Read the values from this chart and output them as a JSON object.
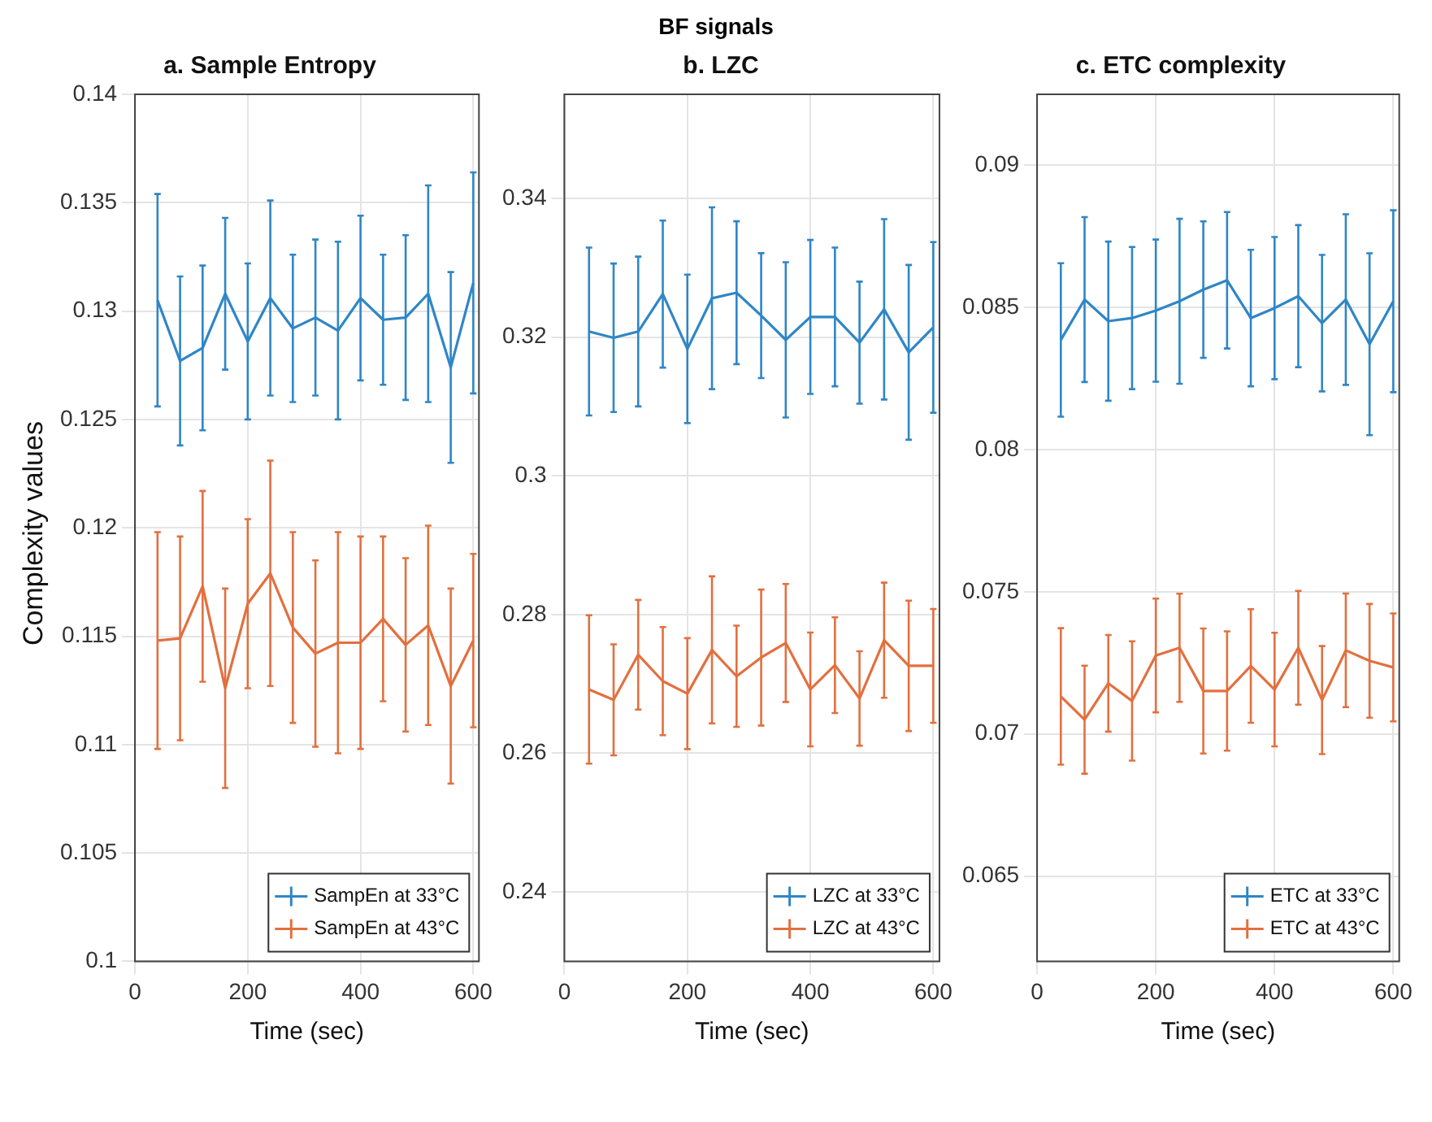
{
  "chart_data": [
    {
      "type": "line",
      "title": "a. Sample Entropy",
      "xlabel": "Time (sec)",
      "ylabel": "Complexity values",
      "annotations": [
        "BF signals"
      ],
      "x": [
        40,
        80,
        120,
        160,
        200,
        240,
        280,
        320,
        360,
        400,
        440,
        480,
        520,
        560,
        600
      ],
      "xlim": [
        0,
        610
      ],
      "xticks": [
        0,
        200,
        400,
        600
      ],
      "ylim": [
        0.1,
        0.14
      ],
      "yticks": [
        0.1,
        0.105,
        0.11,
        0.115,
        0.12,
        0.125,
        0.13,
        0.135,
        0.14
      ],
      "grid": true,
      "legend": "bottom right",
      "series": [
        {
          "name": "SampEn at 33°C",
          "color": "#2f86c6",
          "values": [
            0.1305,
            0.1277,
            0.1283,
            0.1308,
            0.1286,
            0.1306,
            0.1292,
            0.1297,
            0.1291,
            0.1306,
            0.1296,
            0.1297,
            0.1308,
            0.1274,
            0.1313
          ],
          "errors": [
            0.0049,
            0.0039,
            0.0038,
            0.0035,
            0.0036,
            0.0045,
            0.0034,
            0.0036,
            0.0041,
            0.0038,
            0.003,
            0.0038,
            0.005,
            0.0044,
            0.0051
          ]
        },
        {
          "name": "SampEn at 43°C",
          "color": "#e2703f",
          "values": [
            0.1148,
            0.1149,
            0.1173,
            0.1126,
            0.1165,
            0.1179,
            0.1154,
            0.1142,
            0.1147,
            0.1147,
            0.1158,
            0.1146,
            0.1155,
            0.1127,
            0.1148
          ],
          "errors": [
            0.005,
            0.0047,
            0.0044,
            0.0046,
            0.0039,
            0.0052,
            0.0044,
            0.0043,
            0.0051,
            0.0049,
            0.0038,
            0.004,
            0.0046,
            0.0045,
            0.004
          ]
        }
      ]
    },
    {
      "type": "line",
      "title": "b. LZC",
      "xlabel": "Time (sec)",
      "x": [
        40,
        80,
        120,
        160,
        200,
        240,
        280,
        320,
        360,
        400,
        440,
        480,
        520,
        560,
        600
      ],
      "xlim": [
        0,
        610
      ],
      "xticks": [
        0,
        200,
        400,
        600
      ],
      "ylim": [
        0.23,
        0.355
      ],
      "yticks": [
        0.24,
        0.26,
        0.28,
        0.3,
        0.32,
        0.34
      ],
      "grid": true,
      "legend": "bottom right",
      "series": [
        {
          "name": "LZC at 33°C",
          "color": "#2f86c6",
          "values": [
            0.3208,
            0.3199,
            0.3208,
            0.3262,
            0.3183,
            0.3256,
            0.3264,
            0.3231,
            0.3196,
            0.3229,
            0.3229,
            0.3192,
            0.324,
            0.3178,
            0.3214
          ],
          "errors": [
            0.0121,
            0.0107,
            0.0108,
            0.0106,
            0.0107,
            0.0131,
            0.0103,
            0.009,
            0.0112,
            0.0111,
            0.01,
            0.0088,
            0.013,
            0.0126,
            0.0123
          ]
        },
        {
          "name": "LZC at 43°C",
          "color": "#e2703f",
          "values": [
            0.2692,
            0.2677,
            0.2742,
            0.2704,
            0.2686,
            0.2749,
            0.2711,
            0.2738,
            0.2759,
            0.2692,
            0.2727,
            0.2679,
            0.2763,
            0.2726,
            0.2726
          ],
          "errors": [
            0.0107,
            0.008,
            0.0079,
            0.0078,
            0.008,
            0.0106,
            0.0073,
            0.0098,
            0.0085,
            0.0082,
            0.0069,
            0.0068,
            0.0083,
            0.0094,
            0.0082
          ]
        }
      ]
    },
    {
      "type": "line",
      "title": "c. ETC complexity",
      "xlabel": "Time (sec)",
      "x": [
        40,
        80,
        120,
        160,
        200,
        240,
        280,
        320,
        360,
        400,
        440,
        480,
        520,
        560,
        600
      ],
      "xlim": [
        0,
        610
      ],
      "xticks": [
        0,
        200,
        400,
        600
      ],
      "ylim": [
        0.062,
        0.0925
      ],
      "yticks": [
        0.065,
        0.07,
        0.075,
        0.08,
        0.085,
        0.09
      ],
      "grid": true,
      "legend": "bottom right",
      "series": [
        {
          "name": "ETC at 33°C",
          "color": "#2f86c6",
          "values": [
            0.08386,
            0.08528,
            0.08452,
            0.08463,
            0.08489,
            0.08522,
            0.08563,
            0.08596,
            0.08463,
            0.08498,
            0.0854,
            0.08445,
            0.08528,
            0.08371,
            0.08522
          ],
          "errors": [
            0.0027,
            0.0029,
            0.0028,
            0.0025,
            0.0025,
            0.0029,
            0.0024,
            0.0024,
            0.0024,
            0.0025,
            0.0025,
            0.0024,
            0.003,
            0.0032,
            0.0032
          ]
        },
        {
          "name": "ETC at 43°C",
          "color": "#e2703f",
          "values": [
            0.07132,
            0.0705,
            0.07178,
            0.07116,
            0.07276,
            0.07303,
            0.07151,
            0.07151,
            0.07239,
            0.07156,
            0.07303,
            0.07119,
            0.07294,
            0.07257,
            0.07234
          ],
          "errors": [
            0.0024,
            0.0019,
            0.0017,
            0.0021,
            0.002,
            0.0019,
            0.0022,
            0.0021,
            0.002,
            0.002,
            0.002,
            0.0019,
            0.002,
            0.002,
            0.0019
          ]
        }
      ]
    }
  ]
}
